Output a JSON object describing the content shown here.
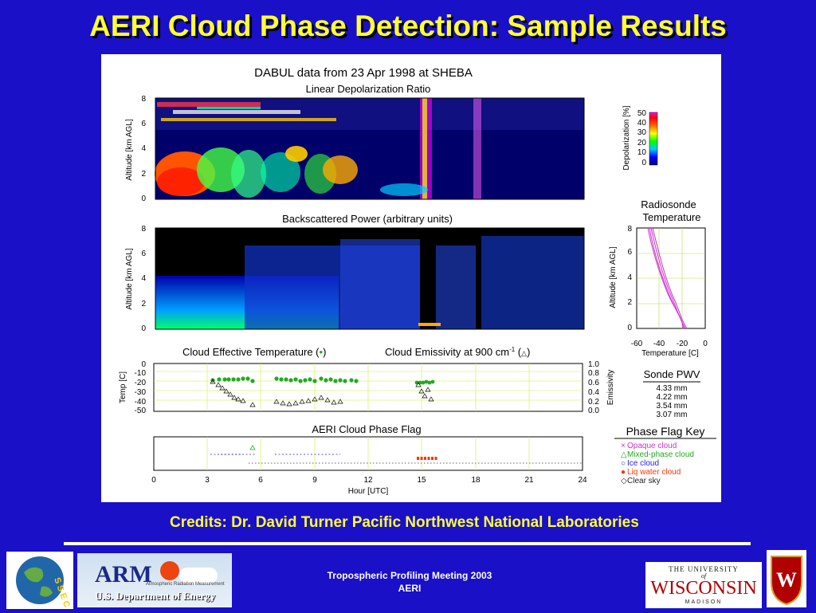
{
  "slide": {
    "title": "AERI Cloud Phase Detection: Sample Results",
    "credits": "Credits:  Dr. David Turner Pacific Northwest National Laboratories",
    "footer_line1": "Tropospheric Profiling Meeting 2003",
    "footer_line2": "AERI"
  },
  "logos": {
    "ssec_letters": "S S E C",
    "arm": "ARM",
    "arm_tag": "Atmospheric Radiation Measurement",
    "doe": "U.S. Department of Energy",
    "uw_top": "THE UNIVERSITY",
    "uw_of": "of",
    "uw_main": "WISCONSIN",
    "uw_bottom": "MADISON",
    "crest": "W"
  },
  "figure": {
    "title": "DABUL data from 23 Apr 1998 at SHEBA",
    "panel1_title": "Linear Depolarization Ratio",
    "panel2_title": "Backscattered Power (arbitrary units)",
    "panel3_title_a": "Cloud Effective Temperature (",
    "panel3_title_b": ")",
    "panel3_title_c": "Cloud Emissivity at 900 cm",
    "panel3_title_sup": "-1",
    "panel3_title_d": " (",
    "panel3_title_e": ")",
    "panel4_title": "AERI Cloud Phase Flag",
    "alt_label": "Altitude [km AGL]",
    "temp_label": "Temp [C]",
    "emis_label": "Emissivity",
    "x_label": "Hour [UTC]",
    "x_ticks": [
      "0",
      "3",
      "6",
      "9",
      "12",
      "15",
      "18",
      "21",
      "24"
    ],
    "alt_ticks": [
      "0",
      "2",
      "4",
      "6",
      "8"
    ],
    "temp_ticks": [
      "0",
      "-10",
      "-20",
      "-30",
      "-40",
      "-50"
    ],
    "emis_ticks": [
      "1.0",
      "0.8",
      "0.6",
      "0.4",
      "0.2",
      "0.0"
    ],
    "depol_label": "Depolarization [%]",
    "depol_ticks": [
      "50",
      "40",
      "30",
      "20",
      "10",
      "0"
    ],
    "radiosonde_title1": "Radiosonde",
    "radiosonde_title2": "Temperature",
    "sonde_x_label": "Temperature [C]",
    "sonde_x_ticks": [
      "-60",
      "-40",
      "-20",
      "0"
    ],
    "pwv_title": "Sonde PWV",
    "pwv_values": [
      "4.33 mm",
      "4.22 mm",
      "3.54 mm",
      "3.07 mm"
    ],
    "key_title": "Phase Flag Key",
    "key_items": [
      {
        "symbol": "×",
        "label": "Opaque cloud",
        "color": "#cc33cc"
      },
      {
        "symbol": "△",
        "label": "Mixed-phase cloud",
        "color": "#22aa22"
      },
      {
        "symbol": "○",
        "label": "Ice cloud",
        "color": "#2222ee"
      },
      {
        "symbol": "●",
        "label": "Liq water cloud",
        "color": "#ff3300"
      },
      {
        "symbol": "◇",
        "label": "Clear sky",
        "color": "#222222"
      }
    ]
  }
}
